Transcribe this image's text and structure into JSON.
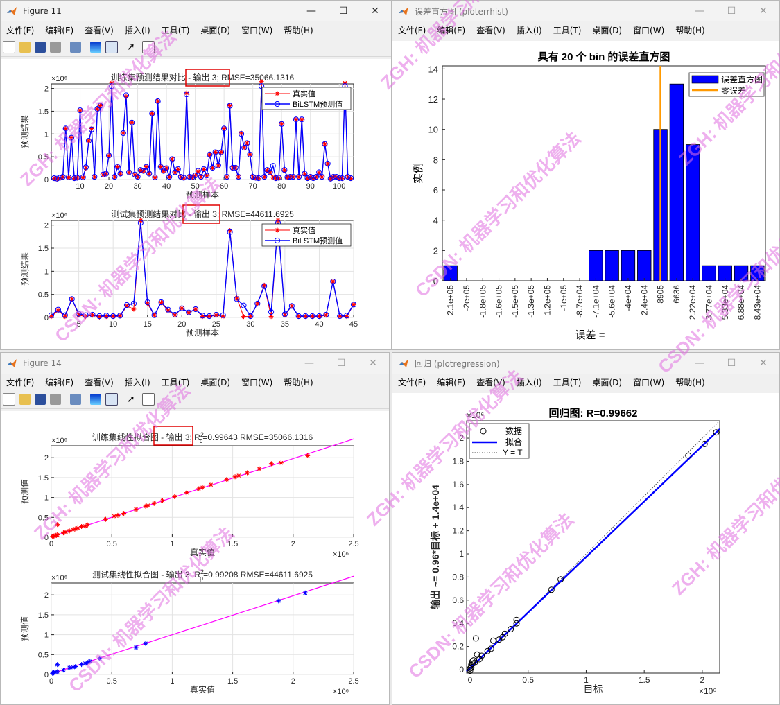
{
  "windows": {
    "fig11": {
      "title": "Figure 11"
    },
    "hist": {
      "title": "误差直方图 (ploterrhist)"
    },
    "fig14": {
      "title": "Figure 14"
    },
    "reg": {
      "title": "回归 (plotregression)"
    }
  },
  "menu": [
    "文件(F)",
    "编辑(E)",
    "查看(V)",
    "插入(I)",
    "工具(T)",
    "桌面(D)",
    "窗口(W)",
    "帮助(H)"
  ],
  "colors": {
    "truth": "#ff0000",
    "pred": "#0000ff",
    "fitline": "#ff00ff",
    "bars": "#0000ff",
    "zeroerr": "#ff9900",
    "highlight": "#e00000"
  },
  "watermark": [
    "ZGH: 机器学习和优化算法",
    "CSDN: 机器学习和优化算法"
  ],
  "chart_data": [
    {
      "id": "train_compare",
      "type": "line",
      "title": "训练集预测结果对比 - 输出 3; RMSE=35066.1316",
      "xlabel": "预测样本",
      "ylabel": "预测结果",
      "yexp": "×10⁶",
      "xlim": [
        0,
        105
      ],
      "ylim": [
        0,
        2.1
      ],
      "xticks": [
        10,
        20,
        30,
        40,
        50,
        60,
        70,
        80,
        90,
        100
      ],
      "yticks": [
        0,
        0.5,
        1,
        1.5,
        2
      ],
      "legend": [
        "真实值",
        "BiLSTM预测值"
      ],
      "series": [
        {
          "name": "真实值",
          "values": [
            0.02,
            0.01,
            0.03,
            0.05,
            1.12,
            0.04,
            0.92,
            0.02,
            0.03,
            1.52,
            0.04,
            0.25,
            0.85,
            1.12,
            0.05,
            1.55,
            1.62,
            0.1,
            0.12,
            0.52,
            2.12,
            0.05,
            0.28,
            0.12,
            1.02,
            1.82,
            0.15,
            1.25,
            0.1,
            0.05,
            0.2,
            0.18,
            0.28,
            0.12,
            1.45,
            0.04,
            1.72,
            0.28,
            0.18,
            0.25,
            0.05,
            0.45,
            0.15,
            0.22,
            0.05,
            0.03,
            1.9,
            0.05,
            0.04,
            0.08,
            0.18,
            0.05,
            0.22,
            0.08,
            0.55,
            0.25,
            0.6,
            0.3,
            0.6,
            1.12,
            0.05,
            1.62,
            0.25,
            0.25,
            0.05,
            1.02,
            0.7,
            0.8,
            0.55,
            0.05,
            0.03,
            0.02,
            2.15,
            0.05,
            0.2,
            0.15,
            0.05,
            0.02,
            0.03,
            1.22,
            0.2,
            0.04,
            0.05,
            0.05,
            1.32,
            0.05,
            1.32,
            0.12,
            0.02,
            0.05,
            0.02,
            0.05,
            0.15,
            0.05,
            0.78,
            0.35,
            0.01,
            0.05,
            0.05,
            0.02,
            0.02,
            2.12,
            0.05,
            0.02
          ]
        },
        {
          "name": "BiLSTM预测值",
          "values": [
            0.03,
            0.02,
            0.04,
            0.06,
            1.12,
            0.05,
            0.92,
            0.03,
            0.04,
            1.52,
            0.05,
            0.27,
            0.85,
            1.1,
            0.06,
            1.55,
            1.62,
            0.11,
            0.13,
            0.53,
            2.05,
            0.06,
            0.28,
            0.13,
            1.02,
            1.85,
            0.16,
            1.25,
            0.11,
            0.06,
            0.21,
            0.19,
            0.28,
            0.13,
            1.45,
            0.05,
            1.72,
            0.28,
            0.19,
            0.25,
            0.06,
            0.45,
            0.16,
            0.23,
            0.06,
            0.04,
            1.87,
            0.06,
            0.05,
            0.09,
            0.19,
            0.06,
            0.23,
            0.09,
            0.55,
            0.26,
            0.6,
            0.31,
            0.6,
            1.12,
            0.06,
            1.62,
            0.26,
            0.26,
            0.06,
            1.0,
            0.7,
            0.8,
            0.55,
            0.06,
            0.04,
            0.03,
            2.05,
            0.06,
            0.21,
            0.16,
            0.3,
            0.03,
            0.04,
            1.22,
            0.21,
            0.05,
            0.06,
            0.06,
            1.32,
            0.06,
            1.32,
            0.13,
            0.03,
            0.06,
            0.03,
            0.06,
            0.16,
            0.06,
            0.78,
            0.35,
            0.02,
            0.06,
            0.06,
            0.03,
            0.03,
            2.05,
            0.06,
            0.03
          ]
        }
      ]
    },
    {
      "id": "test_compare",
      "type": "line",
      "title": "测试集预测结果对比 - 输出 3; RMSE=44611.6925",
      "xlabel": "预测样本",
      "ylabel": "预测结果",
      "yexp": "×10⁶",
      "xlim": [
        1,
        45
      ],
      "ylim": [
        0,
        2.1
      ],
      "xticks": [
        5,
        10,
        15,
        20,
        25,
        30,
        35,
        40,
        45
      ],
      "yticks": [
        0,
        0.5,
        1,
        1.5,
        2
      ],
      "legend": [
        "真实值",
        "BiLSTM预测值"
      ],
      "series": [
        {
          "name": "真实值",
          "values": [
            0.02,
            0.15,
            0.02,
            0.4,
            0.05,
            0.02,
            0.05,
            0.01,
            0.02,
            0.02,
            0.03,
            0.25,
            0.18,
            2.1,
            0.3,
            0.05,
            0.32,
            0.15,
            0.05,
            0.2,
            0.1,
            0.18,
            0.02,
            0.02,
            0.05,
            0.02,
            1.88,
            0.42,
            0.02,
            0.02,
            0.3,
            0.7,
            0.02,
            2.1,
            0.05,
            0.25,
            0.02,
            0.02,
            0.02,
            0.02,
            0.05,
            0.78,
            0.02,
            0.02,
            0.28
          ]
        },
        {
          "name": "BiLSTM预测值",
          "values": [
            0.05,
            0.17,
            0.05,
            0.4,
            0.08,
            0.05,
            0.06,
            0.03,
            0.04,
            0.03,
            0.04,
            0.27,
            0.3,
            2.05,
            0.33,
            0.05,
            0.33,
            0.17,
            0.06,
            0.2,
            0.11,
            0.18,
            0.04,
            0.03,
            0.06,
            0.05,
            1.85,
            0.4,
            0.26,
            0.03,
            0.3,
            0.68,
            0.12,
            2.05,
            0.07,
            0.25,
            0.03,
            0.03,
            0.03,
            0.03,
            0.06,
            0.78,
            0.03,
            0.04,
            0.28
          ]
        }
      ]
    },
    {
      "id": "train_fit",
      "type": "scatter",
      "title": "训练集线性拟合图 - 输出 3; R",
      "title_sub": "c",
      "title_sup": "2",
      "title_tail": "=0.99643  RMSE=35066.1316",
      "xlabel": "真实值",
      "ylabel": "预测值",
      "xexp": "×10⁶",
      "yexp": "×10⁶",
      "xlim": [
        0,
        2.5
      ],
      "ylim": [
        0,
        2.3
      ],
      "xticks": [
        0,
        0.5,
        1,
        1.5,
        2,
        2.5
      ],
      "yticks": [
        0,
        0.5,
        1,
        1.5,
        2
      ],
      "points": [
        [
          0.01,
          0.02
        ],
        [
          0.02,
          0.03
        ],
        [
          0.03,
          0.03
        ],
        [
          0.04,
          0.05
        ],
        [
          0.05,
          0.06
        ],
        [
          0.05,
          0.32
        ],
        [
          0.1,
          0.11
        ],
        [
          0.12,
          0.13
        ],
        [
          0.15,
          0.16
        ],
        [
          0.18,
          0.19
        ],
        [
          0.2,
          0.21
        ],
        [
          0.22,
          0.23
        ],
        [
          0.25,
          0.27
        ],
        [
          0.28,
          0.28
        ],
        [
          0.3,
          0.31
        ],
        [
          0.45,
          0.45
        ],
        [
          0.52,
          0.53
        ],
        [
          0.55,
          0.55
        ],
        [
          0.6,
          0.6
        ],
        [
          0.7,
          0.7
        ],
        [
          0.78,
          0.78
        ],
        [
          0.8,
          0.8
        ],
        [
          0.85,
          0.85
        ],
        [
          0.92,
          0.92
        ],
        [
          1.02,
          1.02
        ],
        [
          1.12,
          1.12
        ],
        [
          1.22,
          1.22
        ],
        [
          1.25,
          1.25
        ],
        [
          1.32,
          1.32
        ],
        [
          1.45,
          1.45
        ],
        [
          1.52,
          1.52
        ],
        [
          1.55,
          1.55
        ],
        [
          1.62,
          1.62
        ],
        [
          1.72,
          1.72
        ],
        [
          1.82,
          1.85
        ],
        [
          1.9,
          1.87
        ],
        [
          2.12,
          2.05
        ]
      ],
      "fit": [
        [
          0,
          0.01
        ],
        [
          2.5,
          2.47
        ]
      ]
    },
    {
      "id": "test_fit",
      "type": "scatter",
      "title": "测试集线性拟合图 - 输出 3; R",
      "title_sub": "p",
      "title_sup": "2",
      "title_tail": "=0.99208  RMSE=44611.6925",
      "xlabel": "真实值",
      "ylabel": "预测值",
      "xexp": "×10⁶",
      "yexp": "×10⁶",
      "xlim": [
        0,
        2.5
      ],
      "ylim": [
        0,
        2.3
      ],
      "xticks": [
        0,
        0.5,
        1,
        1.5,
        2,
        2.5
      ],
      "yticks": [
        0,
        0.5,
        1,
        1.5,
        2
      ],
      "points": [
        [
          0.01,
          0.03
        ],
        [
          0.02,
          0.04
        ],
        [
          0.02,
          0.05
        ],
        [
          0.03,
          0.06
        ],
        [
          0.05,
          0.25
        ],
        [
          0.05,
          0.07
        ],
        [
          0.1,
          0.11
        ],
        [
          0.15,
          0.17
        ],
        [
          0.18,
          0.18
        ],
        [
          0.2,
          0.2
        ],
        [
          0.25,
          0.25
        ],
        [
          0.28,
          0.28
        ],
        [
          0.3,
          0.3
        ],
        [
          0.32,
          0.33
        ],
        [
          0.4,
          0.4
        ],
        [
          0.7,
          0.68
        ],
        [
          0.78,
          0.78
        ],
        [
          1.88,
          1.85
        ],
        [
          2.1,
          2.05
        ],
        [
          2.1,
          2.05
        ]
      ],
      "fit": [
        [
          0,
          0.02
        ],
        [
          2.5,
          2.47
        ]
      ]
    },
    {
      "id": "error_hist",
      "type": "bar",
      "title": "具有 20 个 bin 的误差直方图",
      "xlabel": "误差 =",
      "ylabel": "实例",
      "categories": [
        "-2.1e+05",
        "-2e+05",
        "-1.8e+05",
        "-1.6e+05",
        "-1.5e+05",
        "-1.3e+05",
        "-1.2e+05",
        "-1e+05",
        "-8.7e+04",
        "-7.1e+04",
        "-5.6e+04",
        "-4e+04",
        "-2.4e+04",
        "-8905",
        "6636",
        "2.22e+04",
        "3.77e+04",
        "5.33e+04",
        "6.88e+04",
        "8.43e+04"
      ],
      "values": [
        1,
        0,
        0,
        0,
        0,
        0,
        0,
        0,
        0,
        2,
        2,
        2,
        2,
        10,
        13,
        9,
        1,
        1,
        1,
        1
      ],
      "ylim": [
        0,
        14.2
      ],
      "yticks": [
        0,
        2,
        4,
        6,
        8,
        10,
        12,
        14
      ],
      "zero_error_position": 13.5,
      "legend": [
        "误差直方图",
        "零误差"
      ]
    },
    {
      "id": "regression",
      "type": "scatter",
      "title": "回归图: R=0.99662",
      "xlabel": "目标",
      "ylabel": "输出 ~= 0.96*目标 + 1.4e+04",
      "xexp": "×10⁶",
      "yexp": "×10⁶",
      "xlim": [
        -0.03,
        2.15
      ],
      "ylim": [
        -0.03,
        2.15
      ],
      "xticks": [
        0,
        0.5,
        1,
        1.5,
        2
      ],
      "yticks": [
        0,
        0.2,
        0.4,
        0.6,
        0.8,
        1,
        1.2,
        1.4,
        1.6,
        1.8,
        2
      ],
      "legend": [
        "数据",
        "拟合",
        "Y = T"
      ],
      "points": [
        [
          0.0,
          0.01
        ],
        [
          0.0,
          -0.01
        ],
        [
          0.01,
          0.02
        ],
        [
          0.01,
          0.04
        ],
        [
          0.02,
          0.05
        ],
        [
          0.02,
          0.07
        ],
        [
          0.03,
          0.08
        ],
        [
          0.04,
          0.06
        ],
        [
          0.05,
          0.27
        ],
        [
          0.06,
          0.13
        ],
        [
          0.08,
          0.09
        ],
        [
          0.1,
          0.12
        ],
        [
          0.15,
          0.16
        ],
        [
          0.18,
          0.18
        ],
        [
          0.2,
          0.25
        ],
        [
          0.25,
          0.26
        ],
        [
          0.28,
          0.28
        ],
        [
          0.3,
          0.31
        ],
        [
          0.35,
          0.35
        ],
        [
          0.4,
          0.4
        ],
        [
          0.4,
          0.43
        ],
        [
          0.7,
          0.69
        ],
        [
          0.78,
          0.78
        ],
        [
          1.88,
          1.85
        ],
        [
          2.02,
          1.95
        ],
        [
          2.12,
          2.05
        ]
      ],
      "fit": [
        [
          -0.03,
          -0.015
        ],
        [
          2.15,
          2.078
        ]
      ]
    }
  ]
}
